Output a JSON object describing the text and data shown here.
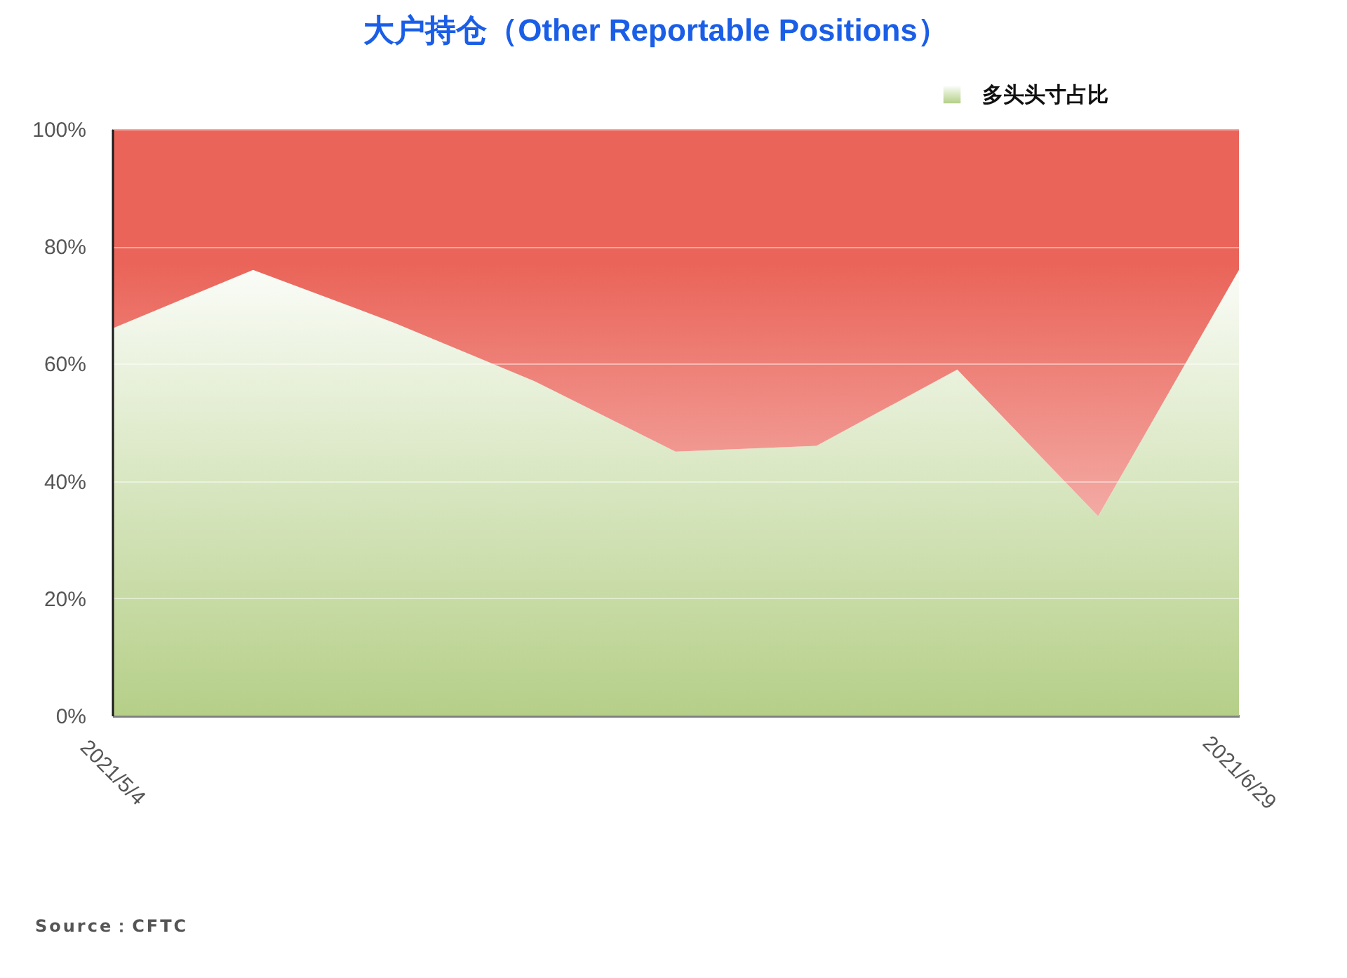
{
  "chart_data": {
    "type": "area",
    "title": "大户持仓（Other Reportable Positions）",
    "categories": [
      "2021/5/4",
      null,
      null,
      null,
      null,
      null,
      null,
      null,
      "2021/6/29"
    ],
    "stacked": true,
    "series": [
      {
        "name": "多头头寸占比",
        "color": "#b5cf88",
        "values": [
          66,
          76,
          67,
          57,
          45,
          46,
          59,
          34,
          76
        ]
      },
      {
        "color": "#ea6459",
        "values": [
          34,
          24,
          33,
          43,
          55,
          54,
          41,
          66,
          24
        ]
      }
    ],
    "ylim": [
      0,
      100
    ],
    "yticks": [
      {
        "value": 0,
        "label": "0%"
      },
      {
        "value": 20,
        "label": "20%"
      },
      {
        "value": 40,
        "label": "40%"
      },
      {
        "value": 60,
        "label": "60%"
      },
      {
        "value": 80,
        "label": "80%"
      },
      {
        "value": 100,
        "label": "100%"
      }
    ],
    "grid": "y",
    "legend": "top right",
    "annotations": [
      "Source：CFTC"
    ]
  }
}
